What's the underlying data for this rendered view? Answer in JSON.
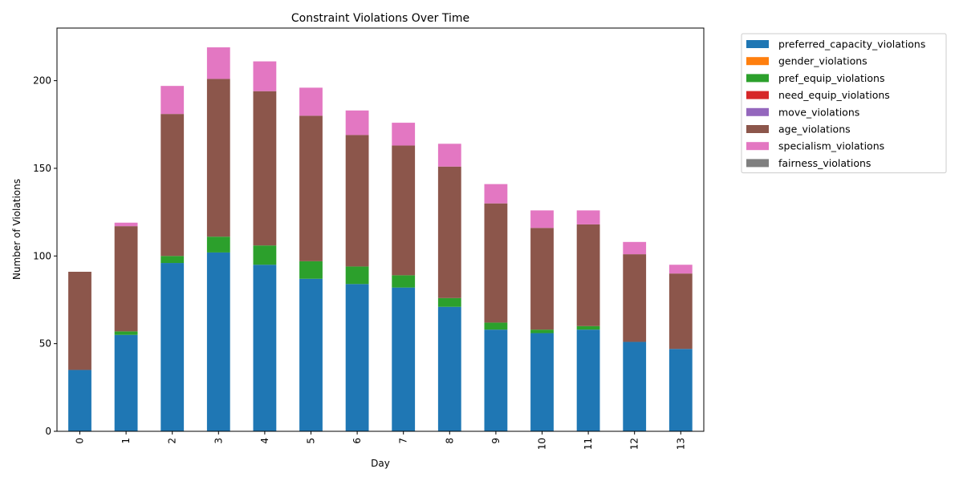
{
  "chart_data": {
    "type": "bar",
    "stacked": true,
    "title": "Constraint Violations Over Time",
    "xlabel": "Day",
    "ylabel": "Number of Violations",
    "categories": [
      "0",
      "1",
      "2",
      "3",
      "4",
      "5",
      "6",
      "7",
      "8",
      "9",
      "10",
      "11",
      "12",
      "13"
    ],
    "ylim": [
      0,
      230
    ],
    "yticks": [
      0,
      50,
      100,
      150,
      200
    ],
    "legend_position": "outside-right",
    "grid": false,
    "series": [
      {
        "name": "preferred_capacity_violations",
        "color": "#1f77b4",
        "values": [
          35,
          55,
          96,
          102,
          95,
          87,
          84,
          82,
          71,
          58,
          56,
          58,
          51,
          47
        ]
      },
      {
        "name": "gender_violations",
        "color": "#ff7f0e",
        "values": [
          0,
          0,
          0,
          0,
          0,
          0,
          0,
          0,
          0,
          0,
          0,
          0,
          0,
          0
        ]
      },
      {
        "name": "pref_equip_violations",
        "color": "#2ca02c",
        "values": [
          0,
          2,
          4,
          9,
          11,
          10,
          10,
          7,
          5,
          4,
          2,
          2,
          0,
          0
        ]
      },
      {
        "name": "need_equip_violations",
        "color": "#d62728",
        "values": [
          0,
          0,
          0,
          0,
          0,
          0,
          0,
          0,
          0,
          0,
          0,
          0,
          0,
          0
        ]
      },
      {
        "name": "move_violations",
        "color": "#9467bd",
        "values": [
          0,
          0,
          0,
          0,
          0,
          0,
          0,
          0,
          0,
          0,
          0,
          0,
          0,
          0
        ]
      },
      {
        "name": "age_violations",
        "color": "#8c564b",
        "values": [
          56,
          60,
          81,
          90,
          88,
          83,
          75,
          74,
          75,
          68,
          58,
          58,
          50,
          43
        ]
      },
      {
        "name": "specialism_violations",
        "color": "#e377c2",
        "values": [
          0,
          2,
          16,
          18,
          17,
          16,
          14,
          13,
          13,
          11,
          10,
          8,
          7,
          5
        ]
      },
      {
        "name": "fairness_violations",
        "color": "#7f7f7f",
        "values": [
          0,
          0,
          0,
          0,
          0,
          0,
          0,
          0,
          0,
          0,
          0,
          0,
          0,
          0
        ]
      }
    ]
  }
}
